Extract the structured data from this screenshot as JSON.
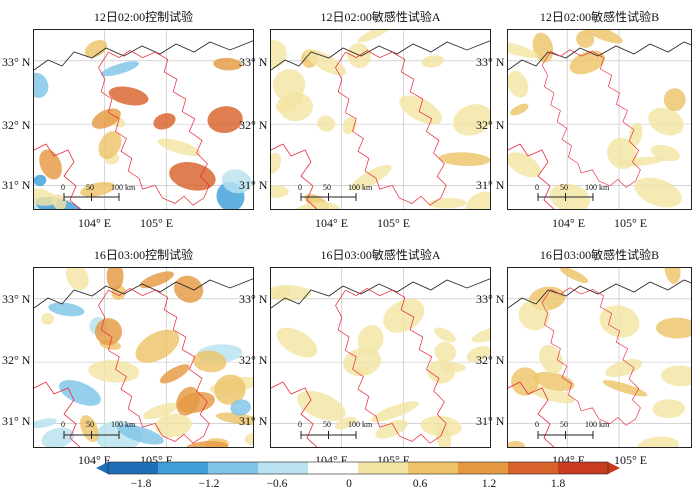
{
  "panels": [
    {
      "title": "12日02:00控制试验",
      "intensity": 1.0,
      "style": "control"
    },
    {
      "title": "12日02:00敏感性试验A",
      "intensity": 0.45,
      "style": "sensA"
    },
    {
      "title": "12日02:00敏感性试验B",
      "intensity": 0.55,
      "style": "sensB"
    },
    {
      "title": "16日03:00控制试验",
      "intensity": 1.0,
      "style": "control"
    },
    {
      "title": "16日03:00敏感性试验A",
      "intensity": 0.4,
      "style": "sensA"
    },
    {
      "title": "16日03:00敏感性试验B",
      "intensity": 0.5,
      "style": "sensB"
    }
  ],
  "lat_labels": [
    "33° N",
    "32° N",
    "31° N"
  ],
  "lon_labels": [
    "104° E",
    "105° E"
  ],
  "scale_labels": [
    "0",
    "50",
    "100 km"
  ],
  "colorbar": {
    "ticks": [
      "−1.8",
      "−1.2",
      "−0.6",
      "0",
      "0.6",
      "1.2",
      "1.8"
    ],
    "colors": [
      "#1f6fb8",
      "#3f9fd8",
      "#7fc4e6",
      "#b8e2ef",
      "#ffffff",
      "#f3e4a4",
      "#edc46a",
      "#e59a42",
      "#d8622a",
      "#c83b1f"
    ],
    "range": [
      -2.1,
      2.1
    ]
  }
}
